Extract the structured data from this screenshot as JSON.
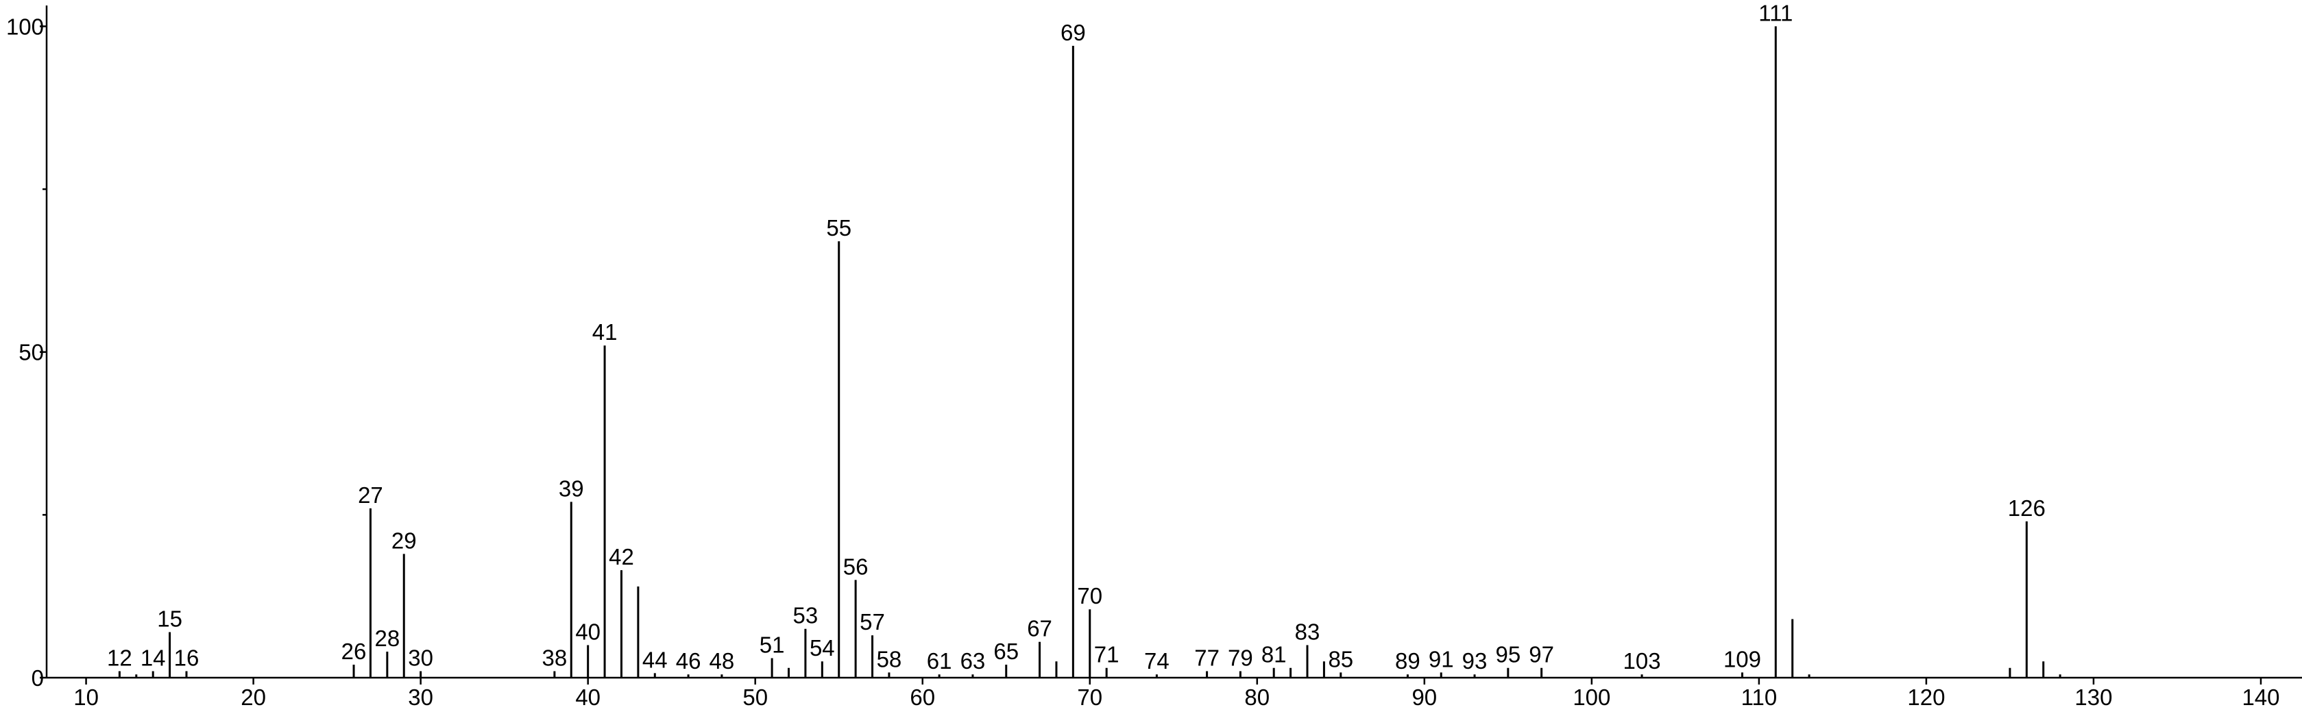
{
  "chart_data": {
    "type": "stick",
    "x": [
      12,
      13,
      14,
      15,
      16,
      26,
      27,
      28,
      29,
      30,
      38,
      39,
      40,
      41,
      42,
      43,
      44,
      46,
      48,
      51,
      52,
      53,
      54,
      55,
      56,
      57,
      58,
      61,
      63,
      65,
      67,
      68,
      69,
      70,
      71,
      74,
      77,
      79,
      81,
      82,
      83,
      84,
      85,
      89,
      91,
      93,
      95,
      97,
      103,
      109,
      111,
      112,
      113,
      125,
      126,
      127,
      128
    ],
    "values": [
      1,
      0.5,
      1,
      7,
      1,
      2,
      26,
      4,
      19,
      1,
      1,
      27,
      5,
      51,
      16.5,
      14,
      0.7,
      0.5,
      0.5,
      3,
      1.5,
      7.5,
      2.5,
      67,
      15,
      6.5,
      0.8,
      0.5,
      0.5,
      2,
      5.5,
      2.5,
      97,
      10.5,
      1.5,
      0.5,
      1,
      1,
      1.5,
      1.5,
      5,
      2.5,
      0.8,
      0.5,
      0.8,
      0.5,
      1.5,
      1.5,
      0.5,
      0.8,
      100,
      9,
      0.5,
      1.5,
      24,
      2.5,
      0.5
    ],
    "labeled": [
      true,
      false,
      true,
      true,
      true,
      true,
      true,
      true,
      true,
      true,
      true,
      true,
      true,
      true,
      true,
      false,
      true,
      true,
      true,
      true,
      false,
      true,
      true,
      true,
      true,
      true,
      true,
      true,
      true,
      true,
      true,
      false,
      true,
      true,
      true,
      true,
      true,
      true,
      true,
      false,
      true,
      false,
      true,
      true,
      true,
      true,
      true,
      true,
      true,
      true,
      true,
      false,
      false,
      false,
      true,
      false,
      false
    ],
    "color": "#000000",
    "xlim": [
      7.64,
      142.46
    ],
    "xticks": [
      10,
      20,
      30,
      40,
      50,
      60,
      70,
      80,
      90,
      100,
      110,
      120,
      130,
      140
    ],
    "ylim": [
      0,
      103.2
    ],
    "yticks": [
      0,
      50,
      100
    ],
    "yminorticks": [
      25,
      75
    ]
  }
}
